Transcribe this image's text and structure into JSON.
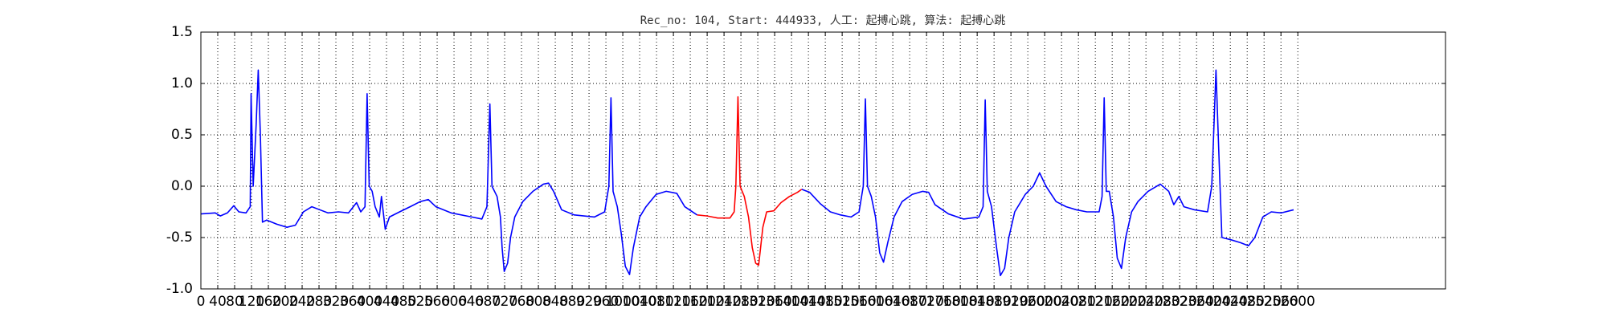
{
  "chart_data": {
    "type": "line",
    "title": "Rec_no: 104, Start: 444933, 人工: 起搏心跳, 算法: 起搏心跳",
    "x": [
      0,
      34,
      46,
      63,
      78,
      90,
      107,
      117,
      119,
      124,
      131,
      136,
      141,
      146,
      156,
      180,
      204,
      224,
      243,
      263,
      282,
      301,
      326,
      350,
      369,
      379,
      389,
      394,
      399,
      406,
      413,
      423,
      428,
      437,
      447,
      471,
      496,
      520,
      539,
      557,
      593,
      642,
      666,
      678,
      685,
      690,
      702,
      710,
      714,
      719,
      727,
      734,
      744,
      763,
      787,
      812,
      824,
      836,
      855,
      885,
      933,
      957,
      967,
      972,
      977,
      987,
      996,
      1006,
      1016,
      1025,
      1040,
      1055,
      1079,
      1103,
      1128,
      1147,
      1176,
      1200,
      1225,
      1254,
      1264,
      1268,
      1273,
      1278,
      1288,
      1298,
      1307,
      1315,
      1322,
      1332,
      1341,
      1358,
      1375,
      1395,
      1414,
      1424,
      1443,
      1468,
      1492,
      1516,
      1541,
      1560,
      1570,
      1575,
      1580,
      1589,
      1599,
      1609,
      1618,
      1628,
      1643,
      1662,
      1686,
      1711,
      1725,
      1740,
      1772,
      1808,
      1844,
      1854,
      1859,
      1864,
      1874,
      1886,
      1895,
      1905,
      1915,
      1929,
      1954,
      1973,
      1988,
      2003,
      2027,
      2051,
      2075,
      2100,
      2129,
      2136,
      2141,
      2146,
      2153,
      2163,
      2172,
      2182,
      2192,
      2206,
      2221,
      2245,
      2274,
      2294,
      2306,
      2318,
      2330,
      2355,
      2386,
      2396,
      2406,
      2413,
      2420,
      2440,
      2464,
      2483,
      2498,
      2517,
      2537,
      2561,
      2590
    ],
    "series": [
      {
        "color": "#0000ff",
        "values": [
          -0.27,
          -0.26,
          -0.29,
          -0.26,
          -0.19,
          -0.25,
          -0.26,
          -0.2,
          0.9,
          0,
          0.6,
          1.13,
          0.5,
          -0.35,
          -0.33,
          -0.37,
          -0.4,
          -0.38,
          -0.25,
          -0.2,
          -0.23,
          -0.26,
          -0.25,
          -0.26,
          -0.16,
          -0.25,
          -0.2,
          0.9,
          0,
          -0.05,
          -0.2,
          -0.3,
          -0.1,
          -0.42,
          -0.3,
          -0.25,
          -0.2,
          -0.15,
          -0.13,
          -0.2,
          -0.26,
          -0.3,
          -0.32,
          -0.2,
          0.8,
          0,
          -0.1,
          -0.3,
          -0.6,
          -0.83,
          -0.75,
          -0.5,
          -0.3,
          -0.15,
          -0.05,
          0.02,
          0.03,
          -0.05,
          -0.23,
          -0.28,
          -0.3,
          -0.25,
          0,
          0.86,
          -0.05,
          -0.2,
          -0.45,
          -0.78,
          -0.86,
          -0.6,
          -0.3,
          -0.2,
          -0.08,
          -0.05,
          -0.07,
          -0.2,
          -0.28,
          null,
          null,
          null,
          null,
          null,
          null,
          null,
          null,
          null,
          null,
          null,
          null,
          null,
          null,
          null,
          null,
          null,
          null,
          -0.03,
          -0.06,
          -0.17,
          -0.25,
          -0.28,
          -0.3,
          -0.25,
          0,
          0.85,
          0,
          -0.1,
          -0.3,
          -0.65,
          -0.74,
          -0.55,
          -0.3,
          -0.15,
          -0.08,
          -0.05,
          -0.06,
          -0.18,
          -0.27,
          -0.32,
          -0.3,
          -0.2,
          0.84,
          -0.05,
          -0.2,
          -0.6,
          -0.87,
          -0.8,
          -0.5,
          -0.25,
          -0.08,
          0,
          0.13,
          0,
          -0.15,
          -0.2,
          -0.23,
          -0.25,
          -0.25,
          -0.1,
          0.86,
          -0.05,
          -0.05,
          -0.3,
          -0.7,
          -0.8,
          -0.5,
          -0.25,
          -0.15,
          -0.05,
          0.02,
          -0.05,
          -0.18,
          -0.1,
          -0.2,
          -0.23,
          -0.25,
          0,
          1.13,
          0.3,
          -0.5,
          -0.52,
          -0.55,
          -0.58,
          -0.5,
          -0.3,
          -0.25,
          -0.26,
          -0.23
        ]
      },
      {
        "color": "#ff0000",
        "values": [
          null,
          null,
          null,
          null,
          null,
          null,
          null,
          null,
          null,
          null,
          null,
          null,
          null,
          null,
          null,
          null,
          null,
          null,
          null,
          null,
          null,
          null,
          null,
          null,
          null,
          null,
          null,
          null,
          null,
          null,
          null,
          null,
          null,
          null,
          null,
          null,
          null,
          null,
          null,
          null,
          null,
          null,
          null,
          null,
          null,
          null,
          null,
          null,
          null,
          null,
          null,
          null,
          null,
          null,
          null,
          null,
          null,
          null,
          null,
          null,
          null,
          null,
          null,
          null,
          null,
          null,
          null,
          null,
          null,
          null,
          null,
          null,
          null,
          null,
          null,
          null,
          -0.28,
          -0.29,
          -0.31,
          -0.31,
          -0.25,
          0,
          0.87,
          0,
          -0.1,
          -0.3,
          -0.6,
          -0.75,
          -0.77,
          -0.4,
          -0.25,
          -0.24,
          -0.16,
          -0.1,
          -0.06,
          -0.03,
          null,
          null,
          null,
          null,
          null,
          null,
          null,
          null,
          null,
          null,
          null,
          null,
          null,
          null,
          null,
          null,
          null,
          null,
          null,
          null,
          null,
          null,
          null,
          null,
          null,
          null,
          null,
          null,
          null,
          null,
          null,
          null,
          null,
          null,
          null,
          null,
          null,
          null,
          null,
          null,
          null,
          null,
          null,
          null,
          null,
          null,
          null,
          null,
          null,
          null,
          null,
          null,
          null,
          null,
          null,
          null,
          null,
          null,
          null,
          null,
          null,
          null,
          null,
          null,
          null,
          null,
          null,
          null,
          null,
          null,
          null
        ]
      }
    ],
    "xlim": [
      0,
      2950
    ],
    "xticks": [
      0,
      40,
      80,
      120,
      160,
      200,
      240,
      280,
      320,
      360,
      400,
      440,
      480,
      520,
      560,
      600,
      640,
      680,
      720,
      760,
      800,
      840,
      880,
      920,
      960,
      1000,
      1040,
      1080,
      1120,
      1160,
      1200,
      1240,
      1280,
      1320,
      1360,
      1400,
      1440,
      1480,
      1520,
      1560,
      1600,
      1640,
      1680,
      1720,
      1760,
      1800,
      1840,
      1880,
      1920,
      1960,
      2000,
      2040,
      2080,
      2120,
      2160,
      2200,
      2240,
      2280,
      2320,
      2360,
      2400,
      2440,
      2480,
      2520,
      2560,
      2600
    ],
    "ylim": [
      -1,
      1.5
    ],
    "yticks": [
      {
        "value": -1,
        "label": "-1.0"
      },
      -0.5,
      {
        "value": 0,
        "label": "0.0"
      },
      0.5,
      {
        "value": 1,
        "label": "1.0"
      },
      1.5
    ],
    "grid": true
  }
}
